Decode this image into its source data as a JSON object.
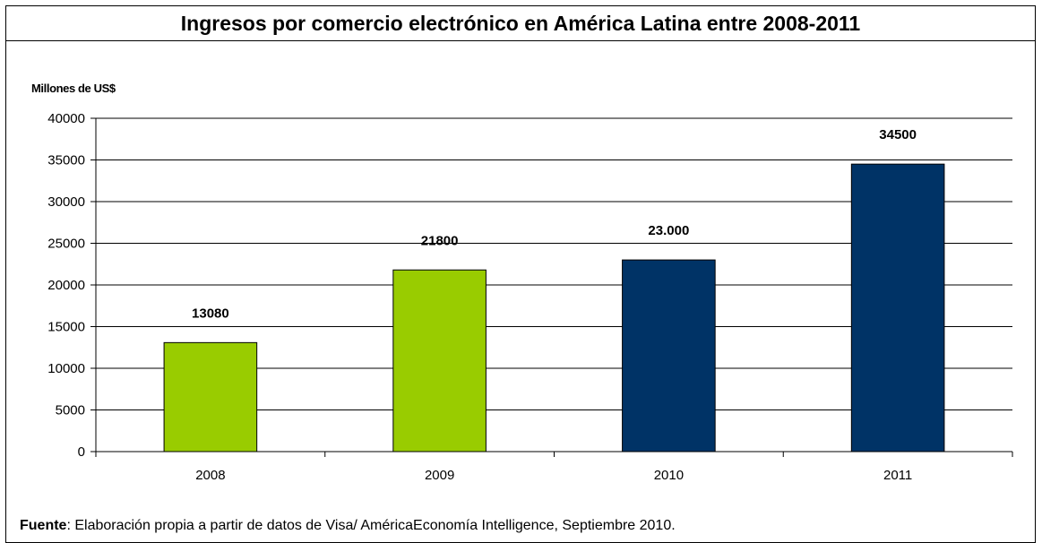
{
  "source": {
    "prefix": "Fuente",
    "text": ": Elaboración propia a partir de datos de Visa/ AméricaEconomía Intelligence, Septiembre 2010."
  },
  "colors": {
    "green": "#99cc00",
    "navy": "#003366",
    "grid": "#000000"
  },
  "chart_data": {
    "type": "bar",
    "title": "Ingresos por comercio electrónico en América Latina entre 2008-2011",
    "xlabel": "",
    "ylabel": "Millones de US$",
    "categories": [
      "2008",
      "2009",
      "2010",
      "2011"
    ],
    "values": [
      13080,
      21800,
      23000,
      34500
    ],
    "data_labels": [
      "13080",
      "21800",
      "23.000",
      "34500"
    ],
    "bar_colors": [
      "#99cc00",
      "#99cc00",
      "#003366",
      "#003366"
    ],
    "ylim": [
      0,
      40000
    ],
    "yticks": [
      "0",
      "5000",
      "10000",
      "15000",
      "20000",
      "25000",
      "30000",
      "35000",
      "40000"
    ],
    "grid": true,
    "legend": "none"
  }
}
